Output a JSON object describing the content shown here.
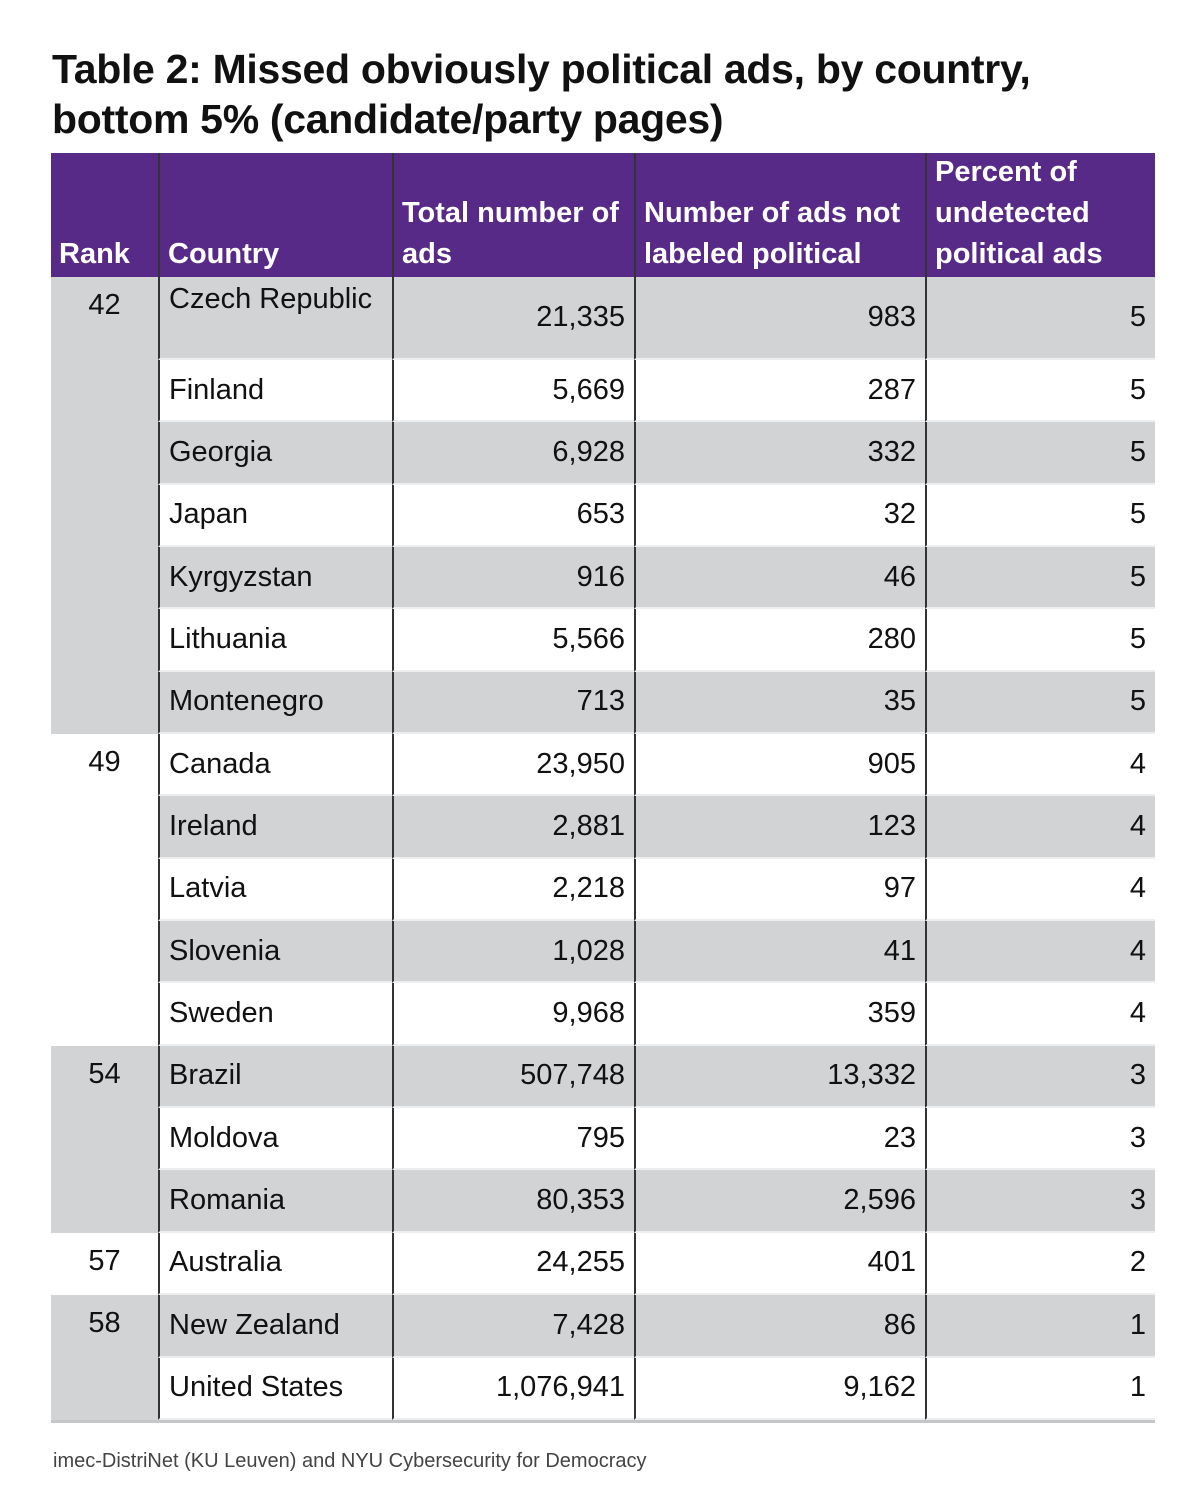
{
  "title": "Table 2: Missed obviously political ads, by country, bottom 5% (candidate/party pages)",
  "source": "imec-DistriNet (KU Leuven) and NYU Cybersecurity for Democracy",
  "colors": {
    "header": "#582a87",
    "gray_row": "#d1d3d5",
    "white_row": "#ffffff"
  },
  "chart_data": {
    "type": "table",
    "title": "Table 2: Missed obviously political ads, by country, bottom 5% (candidate/party pages)",
    "columns": [
      "Rank",
      "Country",
      "Total number of ads",
      "Number of ads not labeled political",
      "Percent of undetected political ads"
    ],
    "groups": [
      {
        "rank": "42",
        "rows": [
          [
            "Czech Republic",
            "21,335",
            "983",
            "5"
          ],
          [
            "Finland",
            "5,669",
            "287",
            "5"
          ],
          [
            "Georgia",
            "6,928",
            "332",
            "5"
          ],
          [
            "Japan",
            "653",
            "32",
            "5"
          ],
          [
            "Kyrgyzstan",
            "916",
            "46",
            "5"
          ],
          [
            "Lithuania",
            "5,566",
            "280",
            "5"
          ],
          [
            "Montenegro",
            "713",
            "35",
            "5"
          ]
        ]
      },
      {
        "rank": "49",
        "rows": [
          [
            "Canada",
            "23,950",
            "905",
            "4"
          ],
          [
            "Ireland",
            "2,881",
            "123",
            "4"
          ],
          [
            "Latvia",
            "2,218",
            "97",
            "4"
          ],
          [
            "Slovenia",
            "1,028",
            "41",
            "4"
          ],
          [
            "Sweden",
            "9,968",
            "359",
            "4"
          ]
        ]
      },
      {
        "rank": "54",
        "rows": [
          [
            "Brazil",
            "507,748",
            "13,332",
            "3"
          ],
          [
            "Moldova",
            "795",
            "23",
            "3"
          ],
          [
            "Romania",
            "80,353",
            "2,596",
            "3"
          ]
        ]
      },
      {
        "rank": "57",
        "rows": [
          [
            "Australia",
            "24,255",
            "401",
            "2"
          ]
        ]
      },
      {
        "rank": "58",
        "rows": [
          [
            "New Zealand",
            "7,428",
            "86",
            "1"
          ],
          [
            "United States",
            "1,076,941",
            "9,162",
            "1"
          ]
        ]
      }
    ]
  }
}
